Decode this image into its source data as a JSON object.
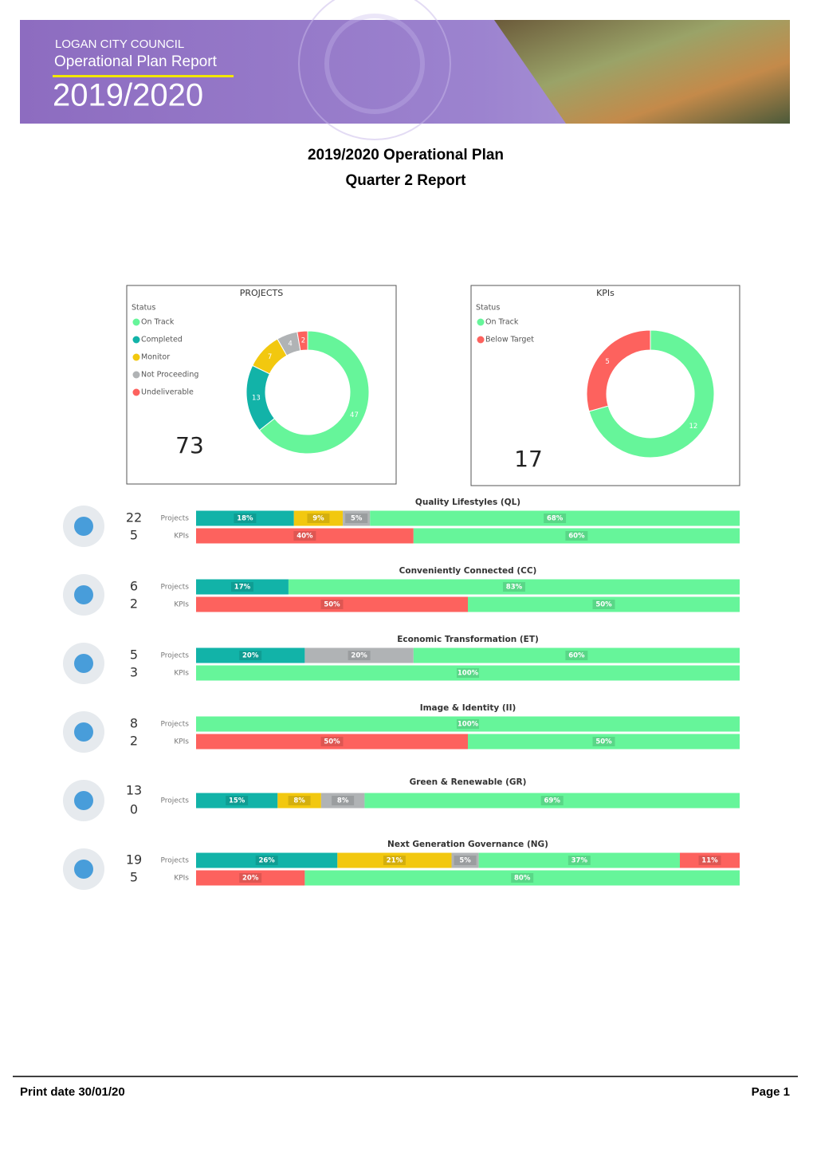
{
  "header": {
    "org": "LOGAN CITY COUNCIL",
    "report": "Operational Plan Report",
    "year": "2019/2020"
  },
  "title": {
    "line1": "2019/2020 Operational Plan",
    "line2": "Quarter 2 Report"
  },
  "donuts": [
    {
      "type": "donut",
      "title": "PROJECTS",
      "legend_title": "Status",
      "total": 73,
      "series": [
        {
          "name": "On Track",
          "color": "#66f59a",
          "value": 47
        },
        {
          "name": "Completed",
          "color": "#12b3a8",
          "value": 13
        },
        {
          "name": "Monitor",
          "color": "#f2c80f",
          "value": 7
        },
        {
          "name": "Not Proceeding",
          "color": "#b0b3b5",
          "value": 4
        },
        {
          "name": "Undeliverable",
          "color": "#fd625e",
          "value": 2
        }
      ]
    },
    {
      "type": "donut",
      "title": "KPIs",
      "legend_title": "Status",
      "total": 17,
      "series": [
        {
          "name": "On Track",
          "color": "#66f59a",
          "value": 12
        },
        {
          "name": "Below Target",
          "color": "#fd625e",
          "value": 5
        }
      ]
    }
  ],
  "themes": [
    {
      "name": "Quality Lifestyles (QL)",
      "projects": {
        "label": "Projects",
        "count": 22,
        "values": [
          18,
          9,
          5,
          68
        ],
        "value_labels": [
          "18%",
          "9%",
          "5%",
          "68%"
        ],
        "colors": [
          "#12b3a8",
          "#f2c80f",
          "#b0b3b5",
          "#66f59a"
        ]
      },
      "kpis": {
        "label": "KPIs",
        "count": 5,
        "values": [
          40,
          60
        ],
        "value_labels": [
          "40%",
          "60%"
        ],
        "colors": [
          "#fd625e",
          "#66f59a"
        ]
      }
    },
    {
      "name": "Conveniently Connected (CC)",
      "projects": {
        "label": "Projects",
        "count": 6,
        "values": [
          17,
          83
        ],
        "value_labels": [
          "17%",
          "83%"
        ],
        "colors": [
          "#12b3a8",
          "#66f59a"
        ]
      },
      "kpis": {
        "label": "KPIs",
        "count": 2,
        "values": [
          50,
          50
        ],
        "value_labels": [
          "50%",
          "50%"
        ],
        "colors": [
          "#fd625e",
          "#66f59a"
        ]
      }
    },
    {
      "name": "Economic Transformation (ET)",
      "projects": {
        "label": "Projects",
        "count": 5,
        "values": [
          20,
          20,
          60
        ],
        "value_labels": [
          "20%",
          "20%",
          "60%"
        ],
        "colors": [
          "#12b3a8",
          "#b0b3b5",
          "#66f59a"
        ]
      },
      "kpis": {
        "label": "KPIs",
        "count": 3,
        "values": [
          100
        ],
        "value_labels": [
          "100%"
        ],
        "colors": [
          "#66f59a"
        ]
      }
    },
    {
      "name": "Image & Identity (II)",
      "projects": {
        "label": "Projects",
        "count": 8,
        "values": [
          100
        ],
        "value_labels": [
          "100%"
        ],
        "colors": [
          "#66f59a"
        ]
      },
      "kpis": {
        "label": "KPIs",
        "count": 2,
        "values": [
          50,
          50
        ],
        "value_labels": [
          "50%",
          "50%"
        ],
        "colors": [
          "#fd625e",
          "#66f59a"
        ]
      }
    },
    {
      "name": "Green & Renewable (GR)",
      "projects": {
        "label": "Projects",
        "count": 13,
        "values": [
          15,
          8,
          8,
          69
        ],
        "value_labels": [
          "15%",
          "8%",
          "8%",
          "69%"
        ],
        "colors": [
          "#12b3a8",
          "#f2c80f",
          "#b0b3b5",
          "#66f59a"
        ]
      },
      "kpis": {
        "count": 0
      }
    },
    {
      "name": "Next Generation Governance (NG)",
      "projects": {
        "label": "Projects",
        "count": 19,
        "values": [
          26,
          21,
          5,
          37,
          11
        ],
        "value_labels": [
          "26%",
          "21%",
          "5%",
          "37%",
          "11%"
        ],
        "colors": [
          "#12b3a8",
          "#f2c80f",
          "#b0b3b5",
          "#66f59a",
          "#fd625e"
        ]
      },
      "kpis": {
        "label": "KPIs",
        "count": 5,
        "values": [
          20,
          80
        ],
        "value_labels": [
          "20%",
          "80%"
        ],
        "colors": [
          "#fd625e",
          "#66f59a"
        ]
      }
    }
  ],
  "footer": {
    "print_date": "Print date 30/01/20",
    "page": "Page 1"
  }
}
